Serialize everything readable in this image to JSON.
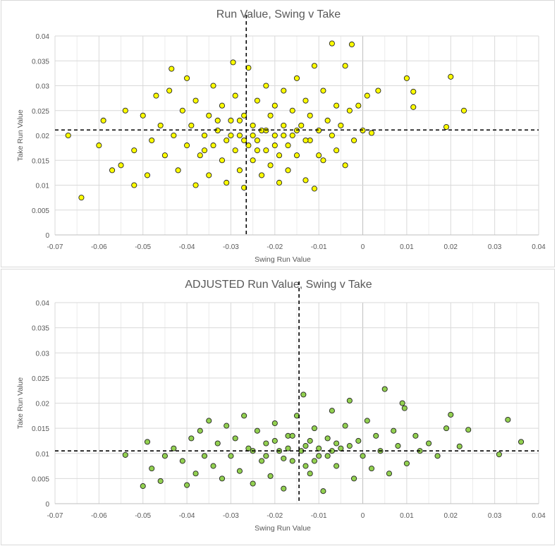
{
  "chart_data": [
    {
      "type": "scatter",
      "title": "Run Value, Swing v Take",
      "xlabel": "Swing Run Value",
      "ylabel": "Take Run Value",
      "xlim": [
        -0.07,
        0.04
      ],
      "ylim": [
        0,
        0.04
      ],
      "xticks": [
        "-0.07",
        "-0.06",
        "-0.05",
        "-0.04",
        "-0.03",
        "-0.02",
        "-0.01",
        "0",
        "0.01",
        "0.02",
        "0.03",
        "0.04"
      ],
      "yticks": [
        "0",
        "0.005",
        "0.01",
        "0.015",
        "0.02",
        "0.025",
        "0.03",
        "0.035",
        "0.04"
      ],
      "grid": true,
      "marker_color": "#FFFF00",
      "reference_lines": {
        "x": -0.0265,
        "y": 0.0211
      },
      "points": [
        [
          -0.064,
          0.0075
        ],
        [
          -0.067,
          0.02
        ],
        [
          -0.059,
          0.023
        ],
        [
          -0.06,
          0.018
        ],
        [
          -0.057,
          0.013
        ],
        [
          -0.055,
          0.014
        ],
        [
          -0.054,
          0.025
        ],
        [
          -0.052,
          0.01
        ],
        [
          -0.052,
          0.017
        ],
        [
          -0.05,
          0.024
        ],
        [
          -0.049,
          0.012
        ],
        [
          -0.048,
          0.019
        ],
        [
          -0.047,
          0.028
        ],
        [
          -0.046,
          0.022
        ],
        [
          -0.045,
          0.016
        ],
        [
          -0.044,
          0.029
        ],
        [
          -0.0435,
          0.0334
        ],
        [
          -0.043,
          0.02
        ],
        [
          -0.042,
          0.013
        ],
        [
          -0.041,
          0.025
        ],
        [
          -0.04,
          0.0315
        ],
        [
          -0.04,
          0.018
        ],
        [
          -0.039,
          0.022
        ],
        [
          -0.038,
          0.01
        ],
        [
          -0.038,
          0.027
        ],
        [
          -0.037,
          0.016
        ],
        [
          -0.036,
          0.02
        ],
        [
          -0.035,
          0.024
        ],
        [
          -0.035,
          0.012
        ],
        [
          -0.034,
          0.03
        ],
        [
          -0.034,
          0.018
        ],
        [
          -0.033,
          0.021
        ],
        [
          -0.032,
          0.015
        ],
        [
          -0.032,
          0.026
        ],
        [
          -0.031,
          0.019
        ],
        [
          -0.031,
          0.0105
        ],
        [
          -0.03,
          0.023
        ],
        [
          -0.0295,
          0.0347
        ],
        [
          -0.029,
          0.017
        ],
        [
          -0.029,
          0.028
        ],
        [
          -0.028,
          0.02
        ],
        [
          -0.028,
          0.013
        ],
        [
          -0.027,
          0.024
        ],
        [
          -0.027,
          0.0095
        ],
        [
          -0.026,
          0.0336
        ],
        [
          -0.026,
          0.018
        ],
        [
          -0.025,
          0.022
        ],
        [
          -0.025,
          0.015
        ],
        [
          -0.024,
          0.027
        ],
        [
          -0.024,
          0.019
        ],
        [
          -0.023,
          0.012
        ],
        [
          -0.023,
          0.021
        ],
        [
          -0.022,
          0.03
        ],
        [
          -0.022,
          0.017
        ],
        [
          -0.021,
          0.024
        ],
        [
          -0.021,
          0.014
        ],
        [
          -0.02,
          0.02
        ],
        [
          -0.02,
          0.026
        ],
        [
          -0.019,
          0.016
        ],
        [
          -0.019,
          0.0105
        ],
        [
          -0.018,
          0.022
        ],
        [
          -0.018,
          0.029
        ],
        [
          -0.017,
          0.018
        ],
        [
          -0.017,
          0.013
        ],
        [
          -0.016,
          0.025
        ],
        [
          -0.016,
          0.02
        ],
        [
          -0.015,
          0.0315
        ],
        [
          -0.015,
          0.016
        ],
        [
          -0.014,
          0.022
        ],
        [
          -0.013,
          0.027
        ],
        [
          -0.013,
          0.011
        ],
        [
          -0.012,
          0.019
        ],
        [
          -0.012,
          0.024
        ],
        [
          -0.011,
          0.0093
        ],
        [
          -0.011,
          0.034
        ],
        [
          -0.01,
          0.021
        ],
        [
          -0.01,
          0.016
        ],
        [
          -0.009,
          0.029
        ],
        [
          -0.009,
          0.015
        ],
        [
          -0.008,
          0.023
        ],
        [
          -0.007,
          0.0385
        ],
        [
          -0.007,
          0.02
        ],
        [
          -0.006,
          0.026
        ],
        [
          -0.006,
          0.017
        ],
        [
          -0.005,
          0.022
        ],
        [
          -0.004,
          0.034
        ],
        [
          -0.004,
          0.014
        ],
        [
          -0.003,
          0.025
        ],
        [
          -0.0025,
          0.0383
        ],
        [
          -0.002,
          0.019
        ],
        [
          -0.001,
          0.026
        ],
        [
          0.0,
          0.021
        ],
        [
          0.001,
          0.028
        ],
        [
          0.002,
          0.0205
        ],
        [
          0.0035,
          0.029
        ],
        [
          0.01,
          0.0315
        ],
        [
          0.0115,
          0.0288
        ],
        [
          0.0115,
          0.0257
        ],
        [
          0.019,
          0.0217
        ],
        [
          0.02,
          0.0318
        ],
        [
          0.023,
          0.025
        ],
        [
          -0.03,
          0.02
        ],
        [
          -0.027,
          0.019
        ],
        [
          -0.025,
          0.02
        ],
        [
          -0.022,
          0.021
        ],
        [
          -0.02,
          0.018
        ],
        [
          -0.018,
          0.02
        ],
        [
          -0.015,
          0.021
        ],
        [
          -0.013,
          0.019
        ],
        [
          -0.033,
          0.023
        ],
        [
          -0.036,
          0.017
        ],
        [
          -0.028,
          0.023
        ],
        [
          -0.024,
          0.017
        ]
      ]
    },
    {
      "type": "scatter",
      "title": "ADJUSTED Run Value, Swing v Take",
      "xlabel": "Swing Run Value",
      "ylabel": "Take Run Value",
      "xlim": [
        -0.07,
        0.04
      ],
      "ylim": [
        0,
        0.04
      ],
      "xticks": [
        "-0.07",
        "-0.06",
        "-0.05",
        "-0.04",
        "-0.03",
        "-0.02",
        "-0.01",
        "0",
        "0.01",
        "0.02",
        "0.03",
        "0.04"
      ],
      "yticks": [
        "0",
        "0.005",
        "0.01",
        "0.015",
        "0.02",
        "0.025",
        "0.03",
        "0.035",
        "0.04"
      ],
      "grid": true,
      "marker_color": "#92D050",
      "reference_lines": {
        "x": -0.0145,
        "y": 0.0105
      },
      "points": [
        [
          -0.054,
          0.0097
        ],
        [
          -0.05,
          0.0035
        ],
        [
          -0.049,
          0.0123
        ],
        [
          -0.048,
          0.007
        ],
        [
          -0.046,
          0.0045
        ],
        [
          -0.045,
          0.0095
        ],
        [
          -0.043,
          0.011
        ],
        [
          -0.041,
          0.0085
        ],
        [
          -0.04,
          0.0037
        ],
        [
          -0.039,
          0.013
        ],
        [
          -0.038,
          0.006
        ],
        [
          -0.037,
          0.0145
        ],
        [
          -0.036,
          0.0095
        ],
        [
          -0.035,
          0.0165
        ],
        [
          -0.034,
          0.0075
        ],
        [
          -0.033,
          0.012
        ],
        [
          -0.032,
          0.005
        ],
        [
          -0.031,
          0.0155
        ],
        [
          -0.03,
          0.0095
        ],
        [
          -0.029,
          0.013
        ],
        [
          -0.028,
          0.0065
        ],
        [
          -0.027,
          0.0175
        ],
        [
          -0.026,
          0.011
        ],
        [
          -0.025,
          0.004
        ],
        [
          -0.024,
          0.0145
        ],
        [
          -0.023,
          0.0085
        ],
        [
          -0.022,
          0.012
        ],
        [
          -0.021,
          0.0055
        ],
        [
          -0.02,
          0.016
        ],
        [
          -0.019,
          0.0105
        ],
        [
          -0.018,
          0.003
        ],
        [
          -0.017,
          0.0135
        ],
        [
          -0.016,
          0.0085
        ],
        [
          -0.015,
          0.0175
        ],
        [
          -0.0135,
          0.0217
        ],
        [
          -0.013,
          0.0115
        ],
        [
          -0.012,
          0.006
        ],
        [
          -0.011,
          0.015
        ],
        [
          -0.01,
          0.0095
        ],
        [
          -0.009,
          0.0025
        ],
        [
          -0.008,
          0.013
        ],
        [
          -0.007,
          0.0185
        ],
        [
          -0.006,
          0.0075
        ],
        [
          -0.005,
          0.011
        ],
        [
          -0.004,
          0.0155
        ],
        [
          -0.003,
          0.0205
        ],
        [
          -0.002,
          0.005
        ],
        [
          -0.001,
          0.0125
        ],
        [
          0.0,
          0.0095
        ],
        [
          0.001,
          0.0165
        ],
        [
          0.002,
          0.007
        ],
        [
          0.003,
          0.0135
        ],
        [
          0.004,
          0.0105
        ],
        [
          0.005,
          0.0228
        ],
        [
          0.006,
          0.006
        ],
        [
          0.007,
          0.0145
        ],
        [
          0.008,
          0.0115
        ],
        [
          0.009,
          0.02
        ],
        [
          0.0095,
          0.019
        ],
        [
          0.01,
          0.008
        ],
        [
          0.012,
          0.0135
        ],
        [
          0.013,
          0.0105
        ],
        [
          0.015,
          0.012
        ],
        [
          0.017,
          0.0095
        ],
        [
          0.019,
          0.015
        ],
        [
          0.02,
          0.0177
        ],
        [
          0.022,
          0.0114
        ],
        [
          0.024,
          0.0147
        ],
        [
          0.031,
          0.0098
        ],
        [
          0.033,
          0.0167
        ],
        [
          0.036,
          0.0123
        ],
        [
          -0.025,
          0.0105
        ],
        [
          -0.02,
          0.0125
        ],
        [
          -0.018,
          0.009
        ],
        [
          -0.014,
          0.0105
        ],
        [
          -0.012,
          0.0125
        ],
        [
          -0.01,
          0.011
        ],
        [
          -0.008,
          0.0095
        ],
        [
          -0.006,
          0.012
        ],
        [
          -0.016,
          0.0135
        ],
        [
          -0.022,
          0.0095
        ],
        [
          -0.011,
          0.0085
        ],
        [
          -0.007,
          0.0105
        ],
        [
          -0.003,
          0.0115
        ],
        [
          -0.017,
          0.011
        ],
        [
          -0.013,
          0.0075
        ]
      ]
    }
  ]
}
